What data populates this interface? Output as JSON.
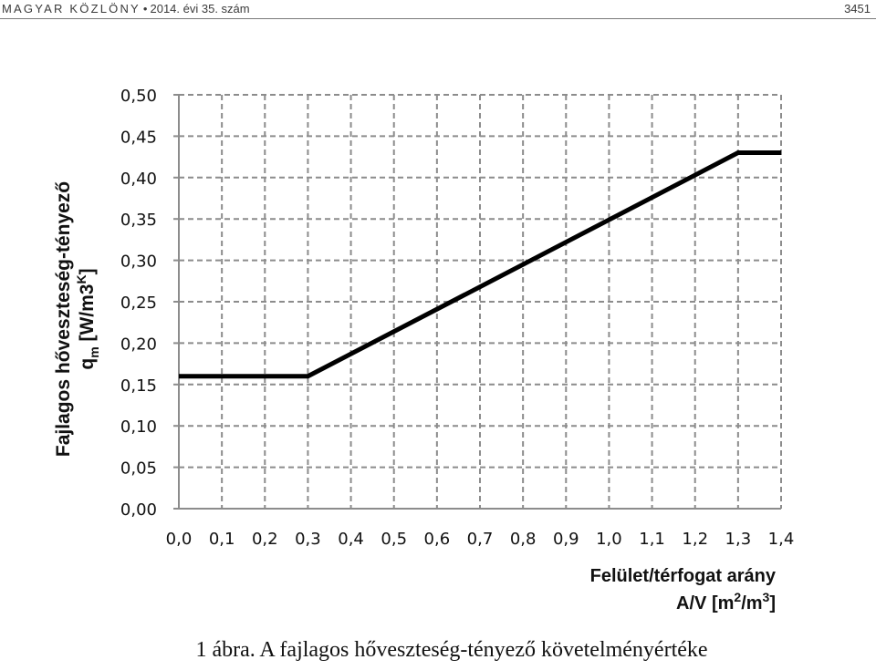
{
  "header": {
    "publication": "MAGYAR KÖZLÖNY",
    "separator": "•",
    "issue": "2014. évi 35. szám",
    "page_number": "3451"
  },
  "caption": "1 ábra. A fajlagos hőveszteség-tényező követelményértéke",
  "chart_data": {
    "type": "line",
    "ylabel_line1": "Fajlagos hőveszteség-tényező",
    "ylabel_line2": "qm [W/m3K]",
    "xlabel_line1": "Felület/térfogat arány",
    "xlabel_line2": "A/V [m2/m3]",
    "x_ticks": [
      "0,0",
      "0,1",
      "0,2",
      "0,3",
      "0,4",
      "0,5",
      "0,6",
      "0,7",
      "0,8",
      "0,9",
      "1,0",
      "1,1",
      "1,2",
      "1,3",
      "1,4"
    ],
    "y_ticks": [
      "0,00",
      "0,05",
      "0,10",
      "0,15",
      "0,20",
      "0,25",
      "0,30",
      "0,35",
      "0,40",
      "0,45",
      "0,50"
    ],
    "xlim": [
      0,
      1.4
    ],
    "ylim": [
      0,
      0.5
    ],
    "grid": true,
    "grid_style": "dashed",
    "line_color": "#000000",
    "grid_color": "#8c8c8c",
    "series": [
      {
        "x": [
          0.0,
          0.3,
          1.3,
          1.4
        ],
        "y": [
          0.16,
          0.16,
          0.43,
          0.43
        ]
      }
    ]
  }
}
